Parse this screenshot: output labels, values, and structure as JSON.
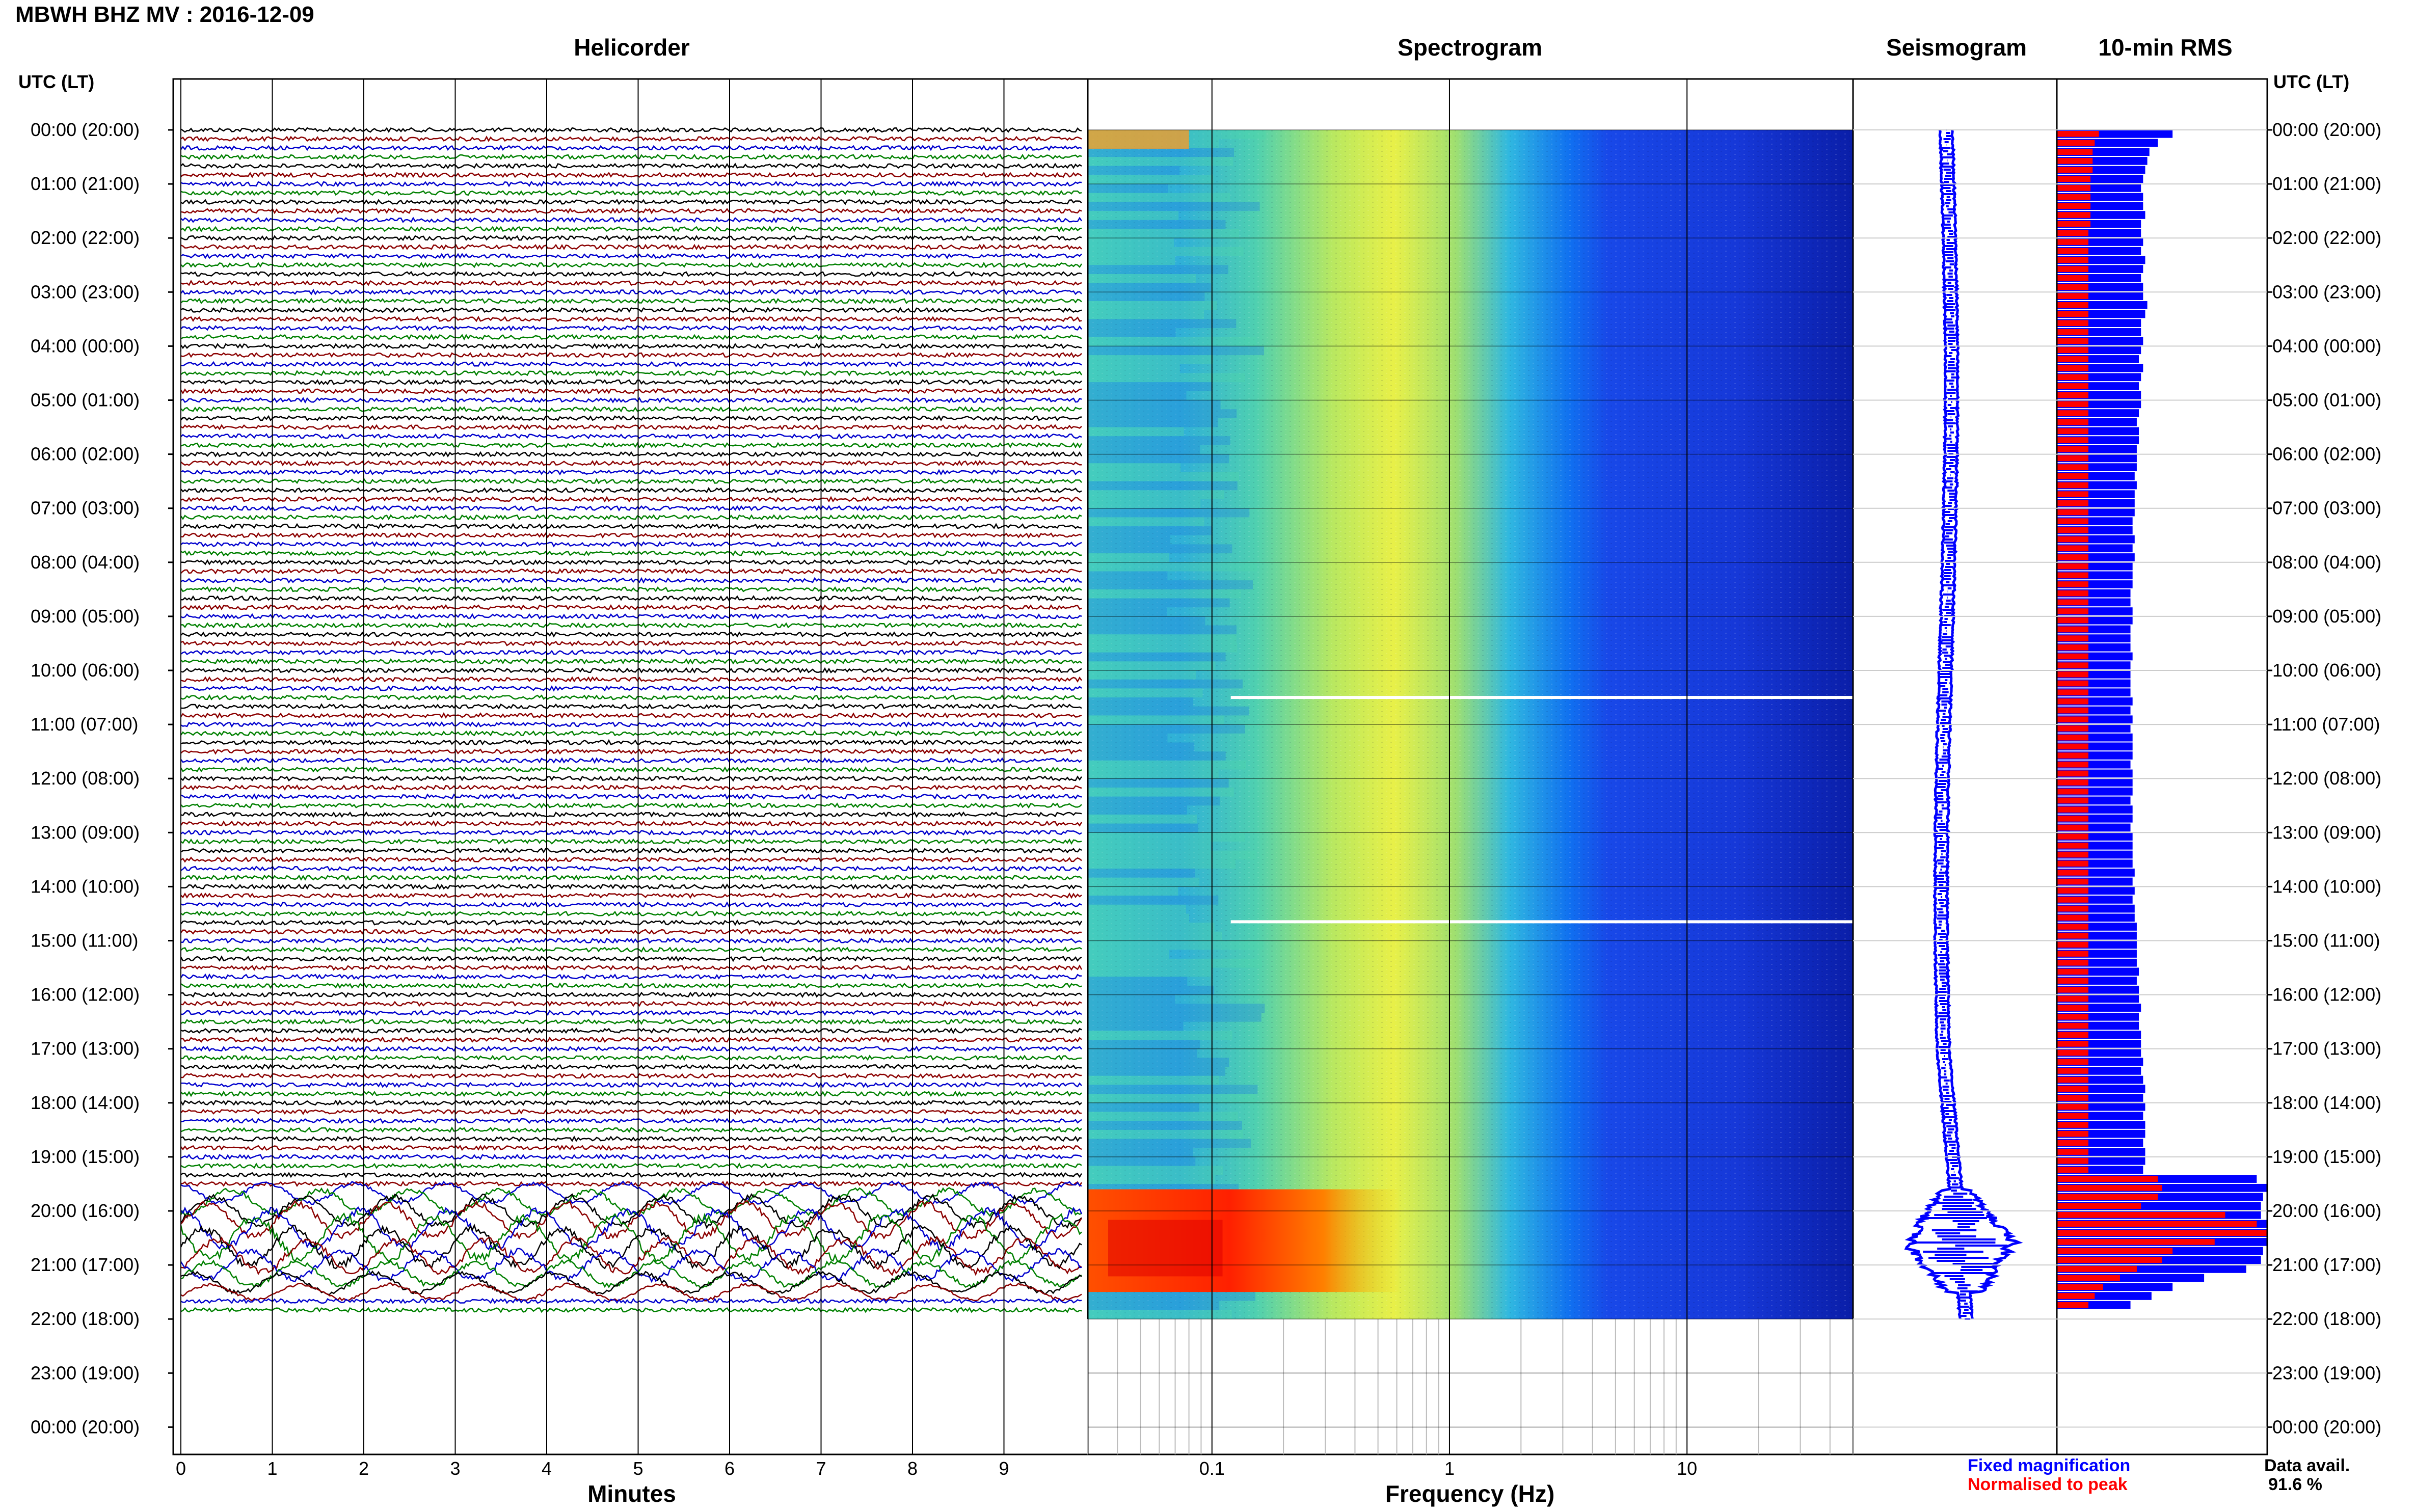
{
  "header": {
    "title": "MBWH BHZ MV : 2016-12-09"
  },
  "panels": {
    "helicorder": {
      "title": "Helicorder",
      "xlabel": "Minutes"
    },
    "spectrogram": {
      "title": "Spectrogram",
      "xlabel": "Frequency (Hz)"
    },
    "seismogram": {
      "title": "Seismogram"
    },
    "rms": {
      "title": "10-min RMS"
    }
  },
  "axis_label": "UTC (LT)",
  "legend": {
    "fixed": "Fixed magnification",
    "normalised": "Normalised to peak",
    "fixed_color": "#0000ff",
    "normalised_color": "#ff0000"
  },
  "data_avail": {
    "label": "Data avail.",
    "value": "91.6 %"
  },
  "colors": {
    "trace_cycle": [
      "#000000",
      "#8b0000",
      "#0000cd",
      "#008000"
    ],
    "seismogram": "#0000ff",
    "rms_fixed": "#0000ff",
    "rms_normalised": "#ff0000"
  },
  "chart_data": [
    {
      "type": "line",
      "name": "helicorder",
      "title": "Helicorder",
      "xlabel": "Minutes",
      "x_ticks": [
        "0",
        "1",
        "2",
        "3",
        "4",
        "5",
        "6",
        "7",
        "8",
        "9"
      ],
      "xlim": [
        0,
        10
      ],
      "time_labels": [
        "00:00 (20:00)",
        "01:00 (21:00)",
        "02:00 (22:00)",
        "03:00 (23:00)",
        "04:00 (00:00)",
        "05:00 (01:00)",
        "06:00 (02:00)",
        "07:00 (03:00)",
        "08:00 (04:00)",
        "09:00 (05:00)",
        "10:00 (06:00)",
        "11:00 (07:00)",
        "12:00 (08:00)",
        "13:00 (09:00)",
        "14:00 (10:00)",
        "15:00 (11:00)",
        "16:00 (12:00)",
        "17:00 (13:00)",
        "18:00 (14:00)",
        "19:00 (15:00)",
        "20:00 (16:00)",
        "21:00 (17:00)",
        "22:00 (18:00)",
        "23:00 (19:00)",
        "00:00 (20:00)"
      ],
      "lines_per_hour": 6,
      "data_hours": 22,
      "event_window_utc_hours": [
        19.6,
        21.5
      ],
      "event_peak_utc_hour": 20.5
    },
    {
      "type": "heatmap",
      "name": "spectrogram",
      "title": "Spectrogram",
      "xlabel": "Frequency (Hz)",
      "x_scale": "log",
      "xlim": [
        0.03,
        50
      ],
      "x_ticks": [
        0.1,
        1,
        10
      ],
      "x_tick_labels": [
        "0.1",
        "1",
        "10"
      ],
      "data_hours": 22,
      "data_gaps_utc_hours": [
        10.5,
        14.65
      ],
      "event_window_utc_hours": [
        19.6,
        21.5
      ],
      "event_band_hz": [
        0.03,
        0.12
      ]
    },
    {
      "type": "line",
      "name": "seismogram",
      "title": "Seismogram",
      "data_hours": 22,
      "event_window_utc_hours": [
        19.6,
        21.5
      ]
    },
    {
      "type": "bar",
      "name": "rms",
      "title": "10-min RMS",
      "orientation": "horizontal",
      "bin_minutes": 10,
      "series": [
        {
          "name": "Fixed magnification",
          "values": [
            0.55,
            0.48,
            0.44,
            0.43,
            0.42,
            0.41,
            0.4,
            0.41,
            0.41,
            0.42,
            0.4,
            0.4,
            0.41,
            0.4,
            0.42,
            0.41,
            0.4,
            0.41,
            0.41,
            0.43,
            0.42,
            0.4,
            0.4,
            0.41,
            0.4,
            0.39,
            0.41,
            0.4,
            0.39,
            0.4,
            0.4,
            0.39,
            0.38,
            0.39,
            0.39,
            0.38,
            0.38,
            0.38,
            0.37,
            0.38,
            0.37,
            0.37,
            0.37,
            0.36,
            0.36,
            0.37,
            0.36,
            0.37,
            0.36,
            0.36,
            0.36,
            0.35,
            0.35,
            0.36,
            0.36,
            0.35,
            0.35,
            0.35,
            0.36,
            0.35,
            0.35,
            0.35,
            0.35,
            0.36,
            0.35,
            0.36,
            0.35,
            0.36,
            0.36,
            0.36,
            0.35,
            0.36,
            0.36,
            0.36,
            0.35,
            0.36,
            0.36,
            0.35,
            0.36,
            0.36,
            0.36,
            0.36,
            0.37,
            0.36,
            0.37,
            0.36,
            0.37,
            0.37,
            0.38,
            0.38,
            0.38,
            0.38,
            0.38,
            0.39,
            0.38,
            0.39,
            0.39,
            0.4,
            0.39,
            0.39,
            0.4,
            0.4,
            0.4,
            0.41,
            0.4,
            0.41,
            0.42,
            0.41,
            0.42,
            0.41,
            0.42,
            0.42,
            0.41,
            0.42,
            0.42,
            0.41,
            0.95,
            1.0,
            0.98,
            0.97,
            0.97,
            1.0,
            1.0,
            1.0,
            0.98,
            0.97,
            0.9,
            0.7,
            0.55,
            0.45,
            0.35
          ]
        },
        {
          "name": "Normalised to peak",
          "values": [
            0.2,
            0.18,
            0.17,
            0.17,
            0.17,
            0.16,
            0.16,
            0.16,
            0.16,
            0.16,
            0.16,
            0.15,
            0.15,
            0.15,
            0.15,
            0.15,
            0.15,
            0.15,
            0.15,
            0.15,
            0.15,
            0.15,
            0.15,
            0.15,
            0.15,
            0.15,
            0.15,
            0.15,
            0.15,
            0.15,
            0.15,
            0.15,
            0.15,
            0.15,
            0.15,
            0.15,
            0.15,
            0.15,
            0.15,
            0.15,
            0.15,
            0.15,
            0.15,
            0.15,
            0.15,
            0.15,
            0.15,
            0.15,
            0.15,
            0.15,
            0.15,
            0.15,
            0.15,
            0.15,
            0.15,
            0.15,
            0.15,
            0.15,
            0.15,
            0.15,
            0.15,
            0.15,
            0.15,
            0.15,
            0.15,
            0.15,
            0.15,
            0.15,
            0.15,
            0.15,
            0.15,
            0.15,
            0.15,
            0.15,
            0.15,
            0.15,
            0.15,
            0.15,
            0.15,
            0.15,
            0.15,
            0.15,
            0.15,
            0.15,
            0.15,
            0.15,
            0.15,
            0.15,
            0.15,
            0.15,
            0.15,
            0.15,
            0.15,
            0.15,
            0.15,
            0.15,
            0.15,
            0.15,
            0.15,
            0.15,
            0.15,
            0.15,
            0.15,
            0.15,
            0.15,
            0.15,
            0.15,
            0.15,
            0.15,
            0.15,
            0.15,
            0.15,
            0.15,
            0.15,
            0.15,
            0.15,
            0.48,
            0.5,
            0.48,
            0.4,
            0.8,
            0.95,
            1.0,
            0.75,
            0.55,
            0.5,
            0.38,
            0.3,
            0.22,
            0.18,
            0.15
          ]
        }
      ]
    }
  ]
}
